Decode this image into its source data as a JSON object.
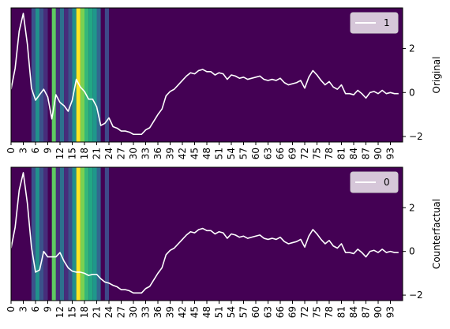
{
  "chart_data": [
    {
      "type": "line",
      "background": "heatmap",
      "ylabel": "Original",
      "legend": {
        "label": "1",
        "placement": "top-right"
      },
      "xlim": [
        0,
        96
      ],
      "ylim": [
        -2.25,
        3.85
      ],
      "yticks": [
        -2,
        0,
        2
      ],
      "y": [
        0.15,
        1.1,
        2.8,
        3.6,
        2.2,
        0.2,
        -0.35,
        -0.1,
        0.15,
        -0.2,
        -1.2,
        -0.1,
        -0.45,
        -0.6,
        -0.85,
        -0.35,
        0.6,
        0.25,
        0.05,
        -0.3,
        -0.3,
        -0.65,
        -1.5,
        -1.4,
        -1.15,
        -1.55,
        -1.62,
        -1.75,
        -1.75,
        -1.8,
        -1.9,
        -1.9,
        -1.9,
        -1.7,
        -1.6,
        -1.3,
        -1.0,
        -0.75,
        -0.15,
        0.05,
        0.15,
        0.35,
        0.55,
        0.75,
        0.9,
        0.85,
        1.0,
        1.05,
        0.95,
        0.95,
        0.8,
        0.9,
        0.85,
        0.6,
        0.8,
        0.75,
        0.65,
        0.7,
        0.6,
        0.65,
        0.7,
        0.75,
        0.6,
        0.55,
        0.6,
        0.55,
        0.65,
        0.45,
        0.35,
        0.4,
        0.45,
        0.55,
        0.2,
        0.7,
        1.0,
        0.8,
        0.55,
        0.35,
        0.5,
        0.25,
        0.15,
        0.35,
        -0.05,
        -0.05,
        -0.1,
        0.1,
        -0.05,
        -0.25,
        0.0,
        0.05,
        -0.05,
        0.1,
        -0.05,
        0.0,
        -0.05,
        -0.05
      ]
    },
    {
      "type": "line",
      "background": "heatmap",
      "ylabel": "Counterfactual",
      "legend": {
        "label": "0",
        "placement": "top-right"
      },
      "xlim": [
        0,
        96
      ],
      "ylim": [
        -2.25,
        3.85
      ],
      "yticks": [
        -2,
        0,
        2
      ],
      "y": [
        0.15,
        1.1,
        2.8,
        3.6,
        2.2,
        0.2,
        -0.95,
        -0.85,
        0.0,
        -0.25,
        -0.25,
        -0.25,
        -0.05,
        -0.45,
        -0.75,
        -0.9,
        -0.95,
        -0.95,
        -1.0,
        -1.1,
        -1.05,
        -1.05,
        -1.25,
        -1.4,
        -1.45,
        -1.55,
        -1.62,
        -1.75,
        -1.75,
        -1.8,
        -1.9,
        -1.9,
        -1.9,
        -1.7,
        -1.6,
        -1.3,
        -1.0,
        -0.75,
        -0.15,
        0.05,
        0.15,
        0.35,
        0.55,
        0.75,
        0.9,
        0.85,
        1.0,
        1.05,
        0.95,
        0.95,
        0.8,
        0.9,
        0.85,
        0.6,
        0.8,
        0.75,
        0.65,
        0.7,
        0.6,
        0.65,
        0.7,
        0.75,
        0.6,
        0.55,
        0.6,
        0.55,
        0.65,
        0.45,
        0.35,
        0.4,
        0.45,
        0.55,
        0.2,
        0.7,
        1.0,
        0.8,
        0.55,
        0.35,
        0.5,
        0.25,
        0.15,
        0.35,
        -0.05,
        -0.05,
        -0.1,
        0.1,
        -0.05,
        -0.25,
        0.0,
        0.05,
        -0.05,
        0.1,
        -0.05,
        0.0,
        -0.05,
        -0.05
      ]
    }
  ],
  "heatmap": {
    "base_color": "#440154",
    "cells": [
      {
        "x0": 5,
        "x1": 6,
        "color": "#3b528b"
      },
      {
        "x0": 6,
        "x1": 7,
        "color": "#21918c"
      },
      {
        "x0": 7,
        "x1": 8,
        "color": "#3b528b"
      },
      {
        "x0": 8,
        "x1": 9,
        "color": "#472d7b"
      },
      {
        "x0": 10,
        "x1": 11,
        "color": "#5ec962"
      },
      {
        "x0": 11,
        "x1": 12,
        "color": "#472d7b"
      },
      {
        "x0": 12,
        "x1": 13,
        "color": "#2c728e"
      },
      {
        "x0": 13,
        "x1": 14,
        "color": "#472d7b"
      },
      {
        "x0": 14,
        "x1": 15,
        "color": "#3b528b"
      },
      {
        "x0": 15,
        "x1": 16,
        "color": "#21918c"
      },
      {
        "x0": 16,
        "x1": 17,
        "color": "#fde725"
      },
      {
        "x0": 17,
        "x1": 18,
        "color": "#7ad151"
      },
      {
        "x0": 18,
        "x1": 19,
        "color": "#35b779"
      },
      {
        "x0": 19,
        "x1": 20,
        "color": "#22a884"
      },
      {
        "x0": 20,
        "x1": 21,
        "color": "#1f988b"
      },
      {
        "x0": 21,
        "x1": 22,
        "color": "#31688e"
      },
      {
        "x0": 22,
        "x1": 23,
        "color": "#440154"
      },
      {
        "x0": 23,
        "x1": 24,
        "color": "#3e4989"
      }
    ]
  },
  "xticks": [
    0,
    3,
    6,
    9,
    12,
    15,
    18,
    21,
    24,
    27,
    30,
    33,
    36,
    39,
    42,
    45,
    48,
    51,
    54,
    57,
    60,
    63,
    66,
    69,
    72,
    75,
    78,
    81,
    84,
    87,
    90,
    93
  ],
  "colors": {
    "line": "#ffffff",
    "axes": "#000000"
  }
}
